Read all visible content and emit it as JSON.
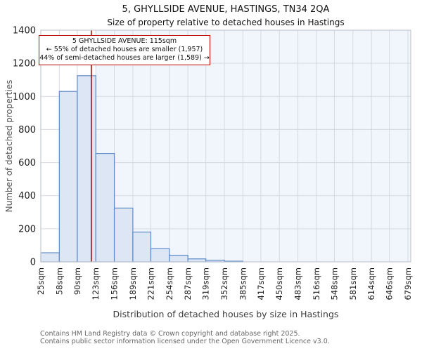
{
  "header": {
    "title": "5, GHYLLSIDE AVENUE, HASTINGS, TN34 2QA",
    "subtitle": "Size of property relative to detached houses in Hastings"
  },
  "annotation": {
    "line1": "5 GHYLLSIDE AVENUE: 115sqm",
    "line2": "← 55% of detached houses are smaller (1,957)",
    "line3": "44% of semi-detached houses are larger (1,589) →"
  },
  "footer": {
    "line1": "Contains HM Land Registry data © Crown copyright and database right 2025.",
    "line2": "Contains public sector information licensed under the Open Government Licence v3.0."
  },
  "chart_data": {
    "type": "bar",
    "title": "Size of property relative to detached houses in Hastings",
    "xlabel": "Distribution of detached houses by size in Hastings",
    "ylabel": "Number of detached properties",
    "bin_edges_sqm": [
      25,
      58,
      90,
      123,
      156,
      189,
      221,
      254,
      287,
      319,
      352,
      385,
      417,
      450,
      483,
      516,
      548,
      581,
      614,
      646,
      679
    ],
    "x_tick_labels": [
      "25sqm",
      "58sqm",
      "90sqm",
      "123sqm",
      "156sqm",
      "189sqm",
      "221sqm",
      "254sqm",
      "287sqm",
      "319sqm",
      "352sqm",
      "385sqm",
      "417sqm",
      "450sqm",
      "483sqm",
      "516sqm",
      "548sqm",
      "581sqm",
      "614sqm",
      "646sqm",
      "679sqm"
    ],
    "values": [
      55,
      1030,
      1125,
      655,
      325,
      180,
      80,
      40,
      18,
      10,
      4,
      0,
      0,
      0,
      0,
      0,
      0,
      0,
      0,
      0
    ],
    "y_ticks": [
      0,
      200,
      400,
      600,
      800,
      1000,
      1200,
      1400
    ],
    "ylim": [
      0,
      1400
    ],
    "marker_value_sqm": 115,
    "shaded_region_start_sqm": 123,
    "grid": true,
    "legend": "none",
    "colors": {
      "bar_fill": "#dce6f5",
      "bar_edge": "#5e8bc8",
      "marker_line": "#bb0000",
      "shaded_region": "#f1f5fc",
      "gridline": "#d6d9e1",
      "plot_border": "#c3c7d0",
      "tick_text": "#1a1a1a"
    }
  }
}
